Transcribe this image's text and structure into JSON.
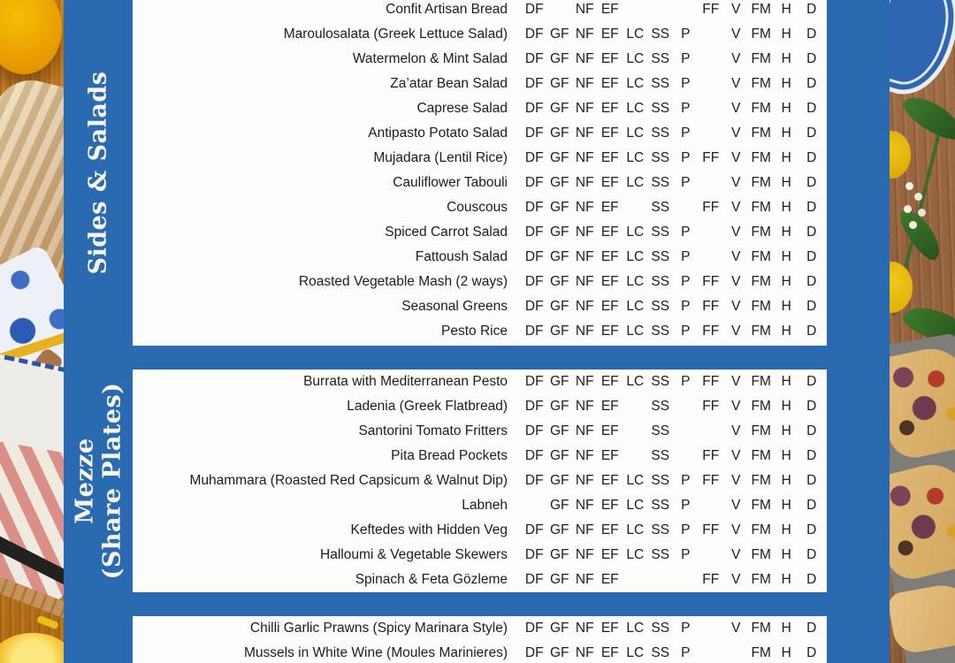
{
  "page": {
    "kind": "restaurant-menu-dietary-matrix",
    "background_color": "#2a6ab1",
    "panel_color": "#fdfdfb",
    "label_color": "#f8f4ea",
    "text_color": "#1d1d1d"
  },
  "menu": {
    "code_columns": [
      "DF",
      "GF",
      "NF",
      "EF",
      "LC",
      "SS",
      "P",
      "FF",
      "V",
      "FM",
      "H",
      "D"
    ],
    "sections": [
      {
        "label": "Sides & Salads",
        "label_lines": [
          "Sides & Salads"
        ],
        "items": [
          {
            "name": "Confit Artisan Bread",
            "codes": [
              "DF",
              "",
              "NF",
              "EF",
              "",
              "",
              "",
              "FF",
              "V",
              "FM",
              "H",
              "D"
            ]
          },
          {
            "name": "Maroulosalata (Greek Lettuce Salad)",
            "codes": [
              "DF",
              "GF",
              "NF",
              "EF",
              "LC",
              "SS",
              "P",
              "",
              "V",
              "FM",
              "H",
              "D"
            ]
          },
          {
            "name": "Watermelon & Mint Salad",
            "codes": [
              "DF",
              "GF",
              "NF",
              "EF",
              "LC",
              "SS",
              "P",
              "",
              "V",
              "FM",
              "H",
              "D"
            ]
          },
          {
            "name": "Za’atar Bean Salad",
            "codes": [
              "DF",
              "GF",
              "NF",
              "EF",
              "LC",
              "SS",
              "P",
              "",
              "V",
              "FM",
              "H",
              "D"
            ]
          },
          {
            "name": "Caprese Salad",
            "codes": [
              "DF",
              "GF",
              "NF",
              "EF",
              "LC",
              "SS",
              "P",
              "",
              "V",
              "FM",
              "H",
              "D"
            ]
          },
          {
            "name": "Antipasto Potato Salad",
            "codes": [
              "DF",
              "GF",
              "NF",
              "EF",
              "LC",
              "SS",
              "P",
              "",
              "V",
              "FM",
              "H",
              "D"
            ]
          },
          {
            "name": "Mujadara (Lentil Rice)",
            "codes": [
              "DF",
              "GF",
              "NF",
              "EF",
              "LC",
              "SS",
              "P",
              "FF",
              "V",
              "FM",
              "H",
              "D"
            ]
          },
          {
            "name": "Cauliflower Tabouli",
            "codes": [
              "DF",
              "GF",
              "NF",
              "EF",
              "LC",
              "SS",
              "P",
              "",
              "V",
              "FM",
              "H",
              "D"
            ]
          },
          {
            "name": "Couscous",
            "codes": [
              "DF",
              "GF",
              "NF",
              "EF",
              "",
              "SS",
              "",
              "FF",
              "V",
              "FM",
              "H",
              "D"
            ]
          },
          {
            "name": "Spiced Carrot Salad",
            "codes": [
              "DF",
              "GF",
              "NF",
              "EF",
              "LC",
              "SS",
              "P",
              "",
              "V",
              "FM",
              "H",
              "D"
            ]
          },
          {
            "name": "Fattoush Salad",
            "codes": [
              "DF",
              "GF",
              "NF",
              "EF",
              "LC",
              "SS",
              "P",
              "",
              "V",
              "FM",
              "H",
              "D"
            ]
          },
          {
            "name": "Roasted Vegetable Mash (2 ways)",
            "codes": [
              "DF",
              "GF",
              "NF",
              "EF",
              "LC",
              "SS",
              "P",
              "FF",
              "V",
              "FM",
              "H",
              "D"
            ]
          },
          {
            "name": "Seasonal Greens",
            "codes": [
              "DF",
              "GF",
              "NF",
              "EF",
              "LC",
              "SS",
              "P",
              "FF",
              "V",
              "FM",
              "H",
              "D"
            ]
          },
          {
            "name": "Pesto Rice",
            "codes": [
              "DF",
              "GF",
              "NF",
              "EF",
              "LC",
              "SS",
              "P",
              "FF",
              "V",
              "FM",
              "H",
              "D"
            ]
          }
        ]
      },
      {
        "label": "Mezze (Share Plates)",
        "label_lines": [
          "Mezze",
          "(Share Plates)"
        ],
        "items": [
          {
            "name": "Burrata with Mediterranean Pesto",
            "codes": [
              "DF",
              "GF",
              "NF",
              "EF",
              "LC",
              "SS",
              "P",
              "FF",
              "V",
              "FM",
              "H",
              "D"
            ]
          },
          {
            "name": "Ladenia (Greek Flatbread)",
            "codes": [
              "DF",
              "GF",
              "NF",
              "EF",
              "",
              "SS",
              "",
              "FF",
              "V",
              "FM",
              "H",
              "D"
            ]
          },
          {
            "name": "Santorini Tomato Fritters",
            "codes": [
              "DF",
              "GF",
              "NF",
              "EF",
              "",
              "SS",
              "",
              "",
              "V",
              "FM",
              "H",
              "D"
            ]
          },
          {
            "name": "Pita Bread Pockets",
            "codes": [
              "DF",
              "GF",
              "NF",
              "EF",
              "",
              "SS",
              "",
              "FF",
              "V",
              "FM",
              "H",
              "D"
            ]
          },
          {
            "name": "Muhammara (Roasted Red Capsicum & Walnut Dip)",
            "codes": [
              "DF",
              "GF",
              "NF",
              "EF",
              "LC",
              "SS",
              "P",
              "FF",
              "V",
              "FM",
              "H",
              "D"
            ]
          },
          {
            "name": "Labneh",
            "codes": [
              "",
              "GF",
              "NF",
              "EF",
              "LC",
              "SS",
              "P",
              "",
              "V",
              "FM",
              "H",
              "D"
            ]
          },
          {
            "name": "Keftedes with Hidden Veg",
            "codes": [
              "DF",
              "GF",
              "NF",
              "EF",
              "LC",
              "SS",
              "P",
              "FF",
              "V",
              "FM",
              "H",
              "D"
            ]
          },
          {
            "name": "Halloumi & Vegetable Skewers",
            "codes": [
              "DF",
              "GF",
              "NF",
              "EF",
              "LC",
              "SS",
              "P",
              "",
              "V",
              "FM",
              "H",
              "D"
            ]
          },
          {
            "name": "Spinach & Feta Gözleme",
            "codes": [
              "DF",
              "GF",
              "NF",
              "EF",
              "",
              "",
              "",
              "FF",
              "V",
              "FM",
              "H",
              "D"
            ]
          }
        ]
      },
      {
        "label": "",
        "label_lines": [],
        "items": [
          {
            "name": "Chilli Garlic Prawns (Spicy Marinara Style)",
            "codes": [
              "DF",
              "GF",
              "NF",
              "EF",
              "LC",
              "SS",
              "P",
              "",
              "V",
              "FM",
              "H",
              "D"
            ]
          },
          {
            "name": "Mussels in White Wine (Moules Marinieres)",
            "codes": [
              "DF",
              "GF",
              "NF",
              "EF",
              "LC",
              "SS",
              "P",
              "",
              "",
              "FM",
              "H",
              "D"
            ]
          }
        ]
      }
    ]
  }
}
